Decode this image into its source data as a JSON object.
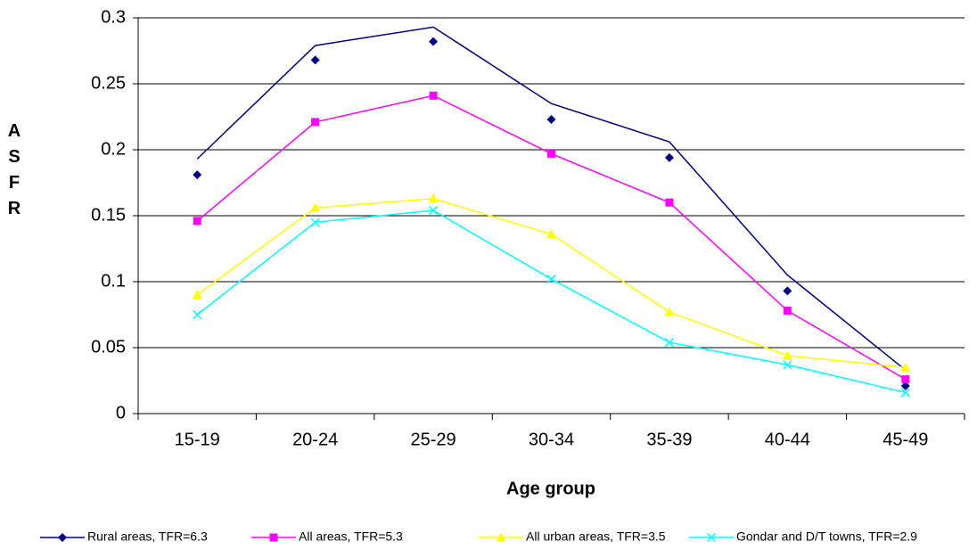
{
  "chart_data": {
    "type": "line",
    "x_label": "Age group",
    "y_label": "ASFR",
    "categories": [
      "15-19",
      "20-24",
      "25-29",
      "30-34",
      "35-39",
      "40-44",
      "45-49"
    ],
    "ylim": [
      0,
      0.3
    ],
    "yticks": [
      0,
      0.05,
      0.1,
      0.15,
      0.2,
      0.25,
      0.3
    ],
    "grid": true,
    "legend": "bottom",
    "series": [
      {
        "name": "Rural areas, TFR=6.3",
        "color": "#000080",
        "marker": "diamond",
        "values": [
          0.181,
          0.268,
          0.282,
          0.223,
          0.194,
          0.093,
          0.021
        ],
        "line_values": [
          0.193,
          0.279,
          0.293,
          0.235,
          0.206,
          0.105,
          0.033
        ]
      },
      {
        "name": "All areas, TFR=5.3",
        "color": "#ff00ff",
        "marker": "square",
        "values": [
          0.146,
          0.221,
          0.241,
          0.197,
          0.16,
          0.078,
          0.026
        ]
      },
      {
        "name": "All urban areas, TFR=3.5",
        "color": "#ffff00",
        "marker": "triangle",
        "values": [
          0.09,
          0.156,
          0.163,
          0.136,
          0.077,
          0.044,
          0.035
        ]
      },
      {
        "name": "Gondar and D/T towns, TFR=2.9",
        "color": "#00ffff",
        "marker": "x",
        "values": [
          0.075,
          0.145,
          0.154,
          0.102,
          0.054,
          0.037,
          0.016
        ]
      }
    ]
  }
}
